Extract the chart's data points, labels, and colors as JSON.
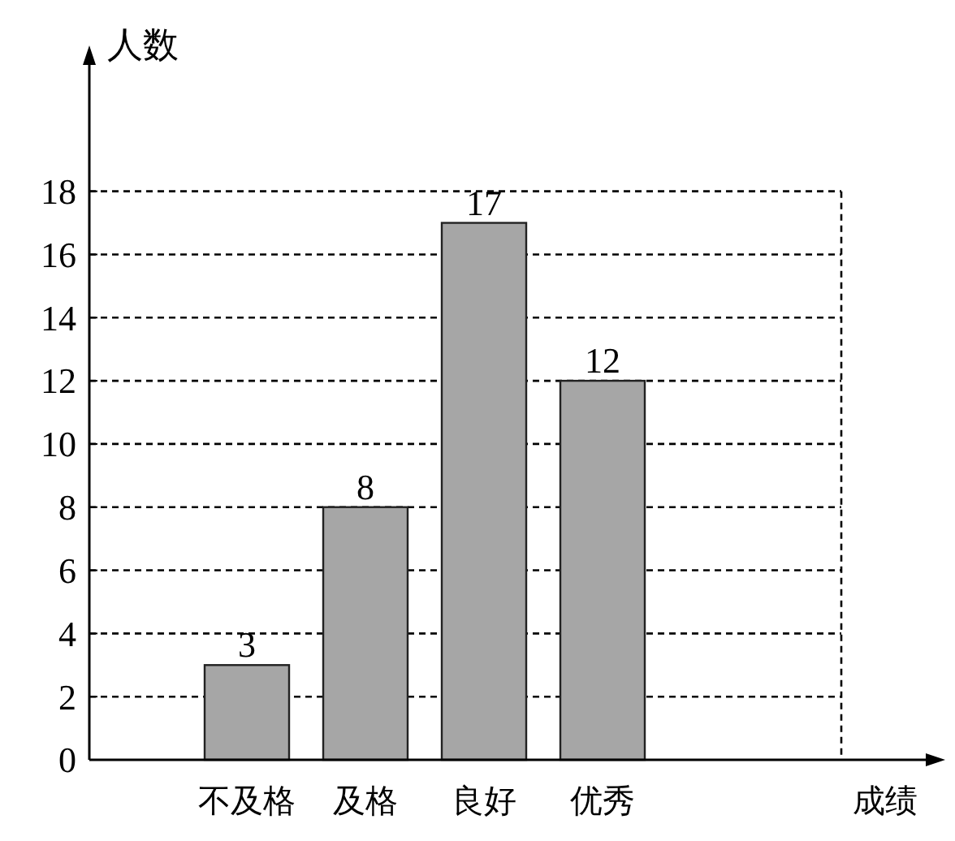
{
  "chart_data": {
    "type": "bar",
    "annotations": [
      "成绩"
    ],
    "ylabel": "人数",
    "categories": [
      "不及格",
      "及格",
      "良好",
      "优秀"
    ],
    "values": [
      3,
      8,
      17,
      12
    ],
    "color": "#a6a6a6",
    "ylim": [
      0,
      22
    ],
    "yticks": [
      0,
      2,
      4,
      6,
      8,
      10,
      12,
      14,
      16,
      18
    ],
    "grid": "y",
    "data_labels": true
  }
}
